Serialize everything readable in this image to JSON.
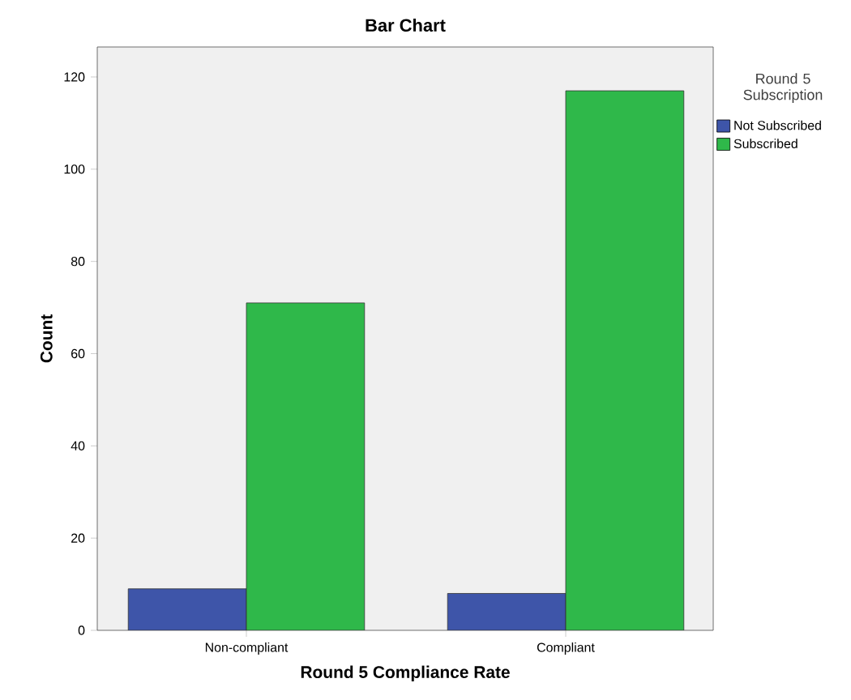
{
  "chart_data": {
    "type": "bar",
    "title": "Bar Chart",
    "xlabel": "Round 5 Compliance Rate",
    "ylabel": "Count",
    "legend_title": "Round 5 Subscription",
    "categories": [
      "Non-compliant",
      "Compliant"
    ],
    "series": [
      {
        "name": "Not Subscribed",
        "color": "#3e55a9",
        "values": [
          9,
          8
        ]
      },
      {
        "name": "Subscribed",
        "color": "#2fb84a",
        "values": [
          71,
          117
        ]
      }
    ],
    "ylim": [
      0,
      126.5
    ],
    "yticks": [
      0,
      20,
      40,
      60,
      80,
      100,
      120
    ],
    "grid": false,
    "legend": "right"
  }
}
